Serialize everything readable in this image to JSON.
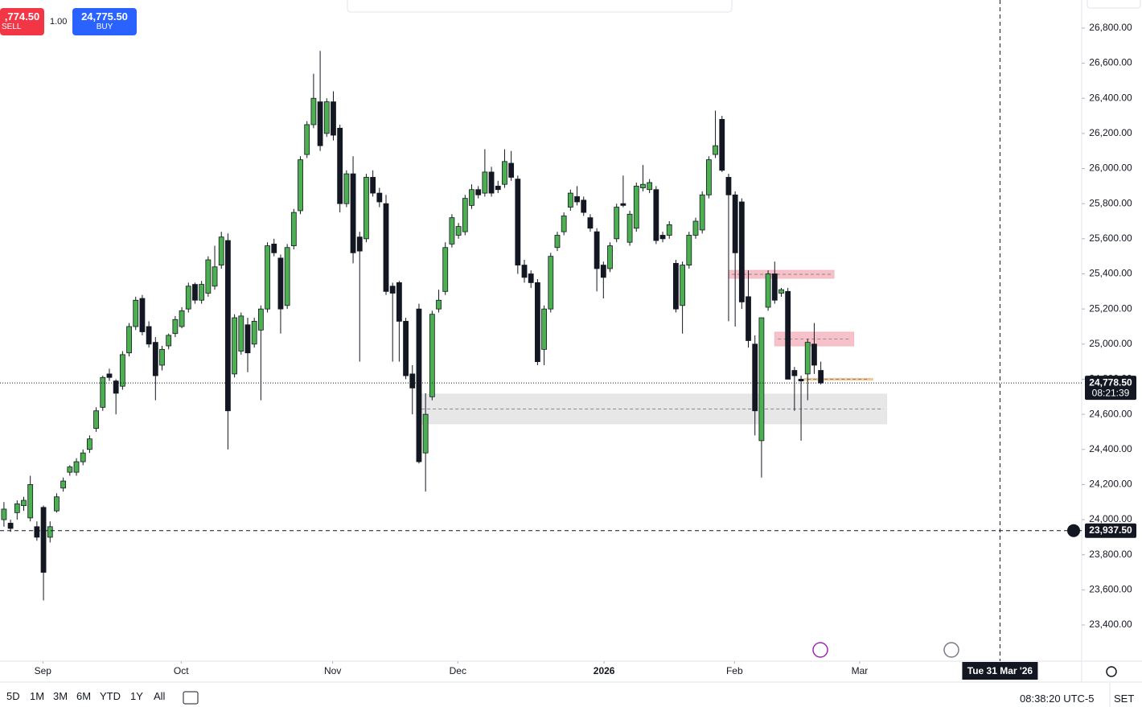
{
  "chart_data": {
    "type": "candlestick",
    "up_color": "#4caf50",
    "down_color": "#131722",
    "candles": [
      [
        24000,
        24100,
        23960,
        24060
      ],
      [
        23980,
        24000,
        23930,
        23950
      ],
      [
        24040,
        24110,
        24000,
        24090
      ],
      [
        24080,
        24130,
        24050,
        24110
      ],
      [
        24010,
        24250,
        23990,
        24200
      ],
      [
        23960,
        23990,
        23880,
        23900
      ],
      [
        24070,
        24080,
        23540,
        23700
      ],
      [
        23900,
        23990,
        23870,
        23960
      ],
      [
        24050,
        24150,
        24040,
        24130
      ],
      [
        24180,
        24240,
        24160,
        24220
      ],
      [
        24270,
        24310,
        24250,
        24300
      ],
      [
        24270,
        24350,
        24250,
        24330
      ],
      [
        24330,
        24400,
        24310,
        24380
      ],
      [
        24400,
        24480,
        24380,
        24460
      ],
      [
        24520,
        24640,
        24500,
        24620
      ],
      [
        24640,
        24820,
        24620,
        24810
      ],
      [
        24830,
        24860,
        24790,
        24810
      ],
      [
        24790,
        24800,
        24600,
        24720
      ],
      [
        24760,
        24960,
        24740,
        24940
      ],
      [
        24950,
        25120,
        24930,
        25100
      ],
      [
        25100,
        25270,
        25080,
        25250
      ],
      [
        25260,
        25280,
        25050,
        25070
      ],
      [
        25100,
        25130,
        24980,
        25000
      ],
      [
        25010,
        25040,
        24680,
        24820
      ],
      [
        24880,
        24990,
        24850,
        24970
      ],
      [
        24990,
        25060,
        24970,
        25050
      ],
      [
        25060,
        25160,
        25040,
        25140
      ],
      [
        25100,
        25210,
        25090,
        25190
      ],
      [
        25200,
        25350,
        25180,
        25330
      ],
      [
        25340,
        25350,
        25230,
        25250
      ],
      [
        25250,
        25360,
        25230,
        25340
      ],
      [
        25290,
        25500,
        25270,
        25480
      ],
      [
        25330,
        25560,
        25310,
        25440
      ],
      [
        25450,
        25640,
        25430,
        25610
      ],
      [
        25590,
        25630,
        24400,
        24620
      ],
      [
        24830,
        25170,
        24810,
        25150
      ],
      [
        24960,
        25180,
        24940,
        25160
      ],
      [
        25110,
        25150,
        24840,
        24950
      ],
      [
        25000,
        25150,
        24980,
        25130
      ],
      [
        25080,
        25220,
        24680,
        25200
      ],
      [
        25200,
        25580,
        25180,
        25560
      ],
      [
        25570,
        25600,
        25500,
        25520
      ],
      [
        25490,
        25510,
        25060,
        25200
      ],
      [
        25220,
        25570,
        25200,
        25550
      ],
      [
        25560,
        25770,
        25540,
        25750
      ],
      [
        25760,
        26070,
        25740,
        26050
      ],
      [
        26080,
        26270,
        26060,
        26250
      ],
      [
        26250,
        26540,
        26230,
        26400
      ],
      [
        26380,
        26670,
        26100,
        26130
      ],
      [
        26200,
        26400,
        26180,
        26380
      ],
      [
        26380,
        26440,
        26160,
        26190
      ],
      [
        26230,
        26250,
        25750,
        25800
      ],
      [
        25800,
        25990,
        25780,
        25970
      ],
      [
        25970,
        26070,
        25460,
        25520
      ],
      [
        25610,
        25640,
        24900,
        25530
      ],
      [
        25600,
        25970,
        25580,
        25950
      ],
      [
        25950,
        25990,
        25840,
        25860
      ],
      [
        25860,
        25890,
        25780,
        25810
      ],
      [
        25800,
        25850,
        25280,
        25300
      ],
      [
        25330,
        25350,
        24900,
        25290
      ],
      [
        25350,
        25360,
        24900,
        25130
      ],
      [
        25130,
        25150,
        24800,
        24820
      ],
      [
        24830,
        24880,
        24600,
        24750
      ],
      [
        25200,
        25230,
        24320,
        24330
      ],
      [
        24380,
        24720,
        24160,
        24600
      ],
      [
        24700,
        25190,
        24680,
        25170
      ],
      [
        25200,
        25310,
        25180,
        25250
      ],
      [
        25300,
        25580,
        25280,
        25550
      ],
      [
        25570,
        25740,
        25550,
        25720
      ],
      [
        25620,
        25690,
        25600,
        25670
      ],
      [
        25640,
        25850,
        25620,
        25830
      ],
      [
        25790,
        25910,
        25770,
        25880
      ],
      [
        25880,
        25900,
        25830,
        25850
      ],
      [
        25860,
        26110,
        25840,
        25980
      ],
      [
        25980,
        26010,
        25840,
        25860
      ],
      [
        25900,
        25930,
        25860,
        25880
      ],
      [
        25910,
        26110,
        25890,
        26040
      ],
      [
        26030,
        26100,
        25930,
        25950
      ],
      [
        25940,
        25960,
        25400,
        25450
      ],
      [
        25450,
        25480,
        25350,
        25380
      ],
      [
        25400,
        25420,
        25320,
        25350
      ],
      [
        25350,
        25370,
        24880,
        24900
      ],
      [
        24970,
        25220,
        24880,
        25200
      ],
      [
        25200,
        25520,
        25180,
        25500
      ],
      [
        25550,
        25640,
        25530,
        25620
      ],
      [
        25640,
        25750,
        25620,
        25730
      ],
      [
        25780,
        25880,
        25760,
        25860
      ],
      [
        25840,
        25900,
        25790,
        25810
      ],
      [
        25820,
        25840,
        25730,
        25750
      ],
      [
        25720,
        25740,
        25640,
        25660
      ],
      [
        25640,
        25660,
        25300,
        25430
      ],
      [
        25450,
        25470,
        25260,
        25380
      ],
      [
        25430,
        25580,
        25410,
        25560
      ],
      [
        25600,
        25800,
        25580,
        25780
      ],
      [
        25800,
        25960,
        25780,
        25790
      ],
      [
        25580,
        25760,
        25560,
        25740
      ],
      [
        25660,
        25920,
        25640,
        25900
      ],
      [
        25890,
        26020,
        25870,
        25910
      ],
      [
        25880,
        25940,
        25860,
        25920
      ],
      [
        25880,
        25900,
        25570,
        25590
      ],
      [
        25620,
        25640,
        25580,
        25600
      ],
      [
        25620,
        25700,
        25600,
        25680
      ],
      [
        25460,
        25480,
        25180,
        25200
      ],
      [
        25220,
        25470,
        25060,
        25450
      ],
      [
        25450,
        25640,
        25430,
        25620
      ],
      [
        25620,
        25720,
        25600,
        25700
      ],
      [
        25650,
        25870,
        25630,
        25850
      ],
      [
        25850,
        26070,
        25830,
        26050
      ],
      [
        26080,
        26330,
        26060,
        26130
      ],
      [
        26280,
        26300,
        25980,
        25990
      ],
      [
        25950,
        25970,
        25130,
        25850
      ],
      [
        25850,
        25870,
        25100,
        25520
      ],
      [
        25810,
        25830,
        25200,
        25240
      ],
      [
        25270,
        25420,
        24980,
        25020
      ],
      [
        25000,
        25050,
        24480,
        24620
      ],
      [
        24450,
        25150,
        24240,
        25150
      ],
      [
        25210,
        25420,
        25190,
        25400
      ],
      [
        25400,
        25470,
        25230,
        25250
      ],
      [
        25290,
        25320,
        25270,
        25310
      ],
      [
        25300,
        25320,
        24800,
        24800
      ],
      [
        24850,
        24870,
        24620,
        24820
      ],
      [
        24800,
        24820,
        24450,
        24790
      ],
      [
        24830,
        25030,
        24680,
        25010
      ],
      [
        25000,
        25120,
        24830,
        24880
      ],
      [
        24850,
        24900,
        24770,
        24778.5
      ]
    ],
    "xlim": [
      -0.6,
      163.6
    ],
    "xticks": [
      {
        "value": 5.9,
        "label": "Sep"
      },
      {
        "value": 26.9,
        "label": "Oct"
      },
      {
        "value": 49.9,
        "label": "Nov"
      },
      {
        "value": 68.9,
        "label": "Dec"
      },
      {
        "value": 91.1,
        "label": "2026"
      },
      {
        "value": 110.9,
        "label": "Feb"
      },
      {
        "value": 129.9,
        "label": "Mar"
      }
    ],
    "ylim": [
      23194,
      26960
    ],
    "yticks": [
      {
        "value": 23400,
        "label": "23,400.00"
      },
      {
        "value": 23600,
        "label": "23,600.00"
      },
      {
        "value": 23800,
        "label": "23,800.00"
      },
      {
        "value": 24000,
        "label": "24,000.00"
      },
      {
        "value": 24200,
        "label": "24,200.00"
      },
      {
        "value": 24400,
        "label": "24,400.00"
      },
      {
        "value": 24600,
        "label": "24,600.00"
      },
      {
        "value": 24800,
        "label": "24,800.00"
      },
      {
        "value": 25000,
        "label": "25,000.00"
      },
      {
        "value": 25200,
        "label": "25,200.00"
      },
      {
        "value": 25400,
        "label": "25,400.00"
      },
      {
        "value": 25600,
        "label": "25,600.00"
      },
      {
        "value": 25800,
        "label": "25,800.00"
      },
      {
        "value": 26000,
        "label": "26,000.00"
      },
      {
        "value": 26200,
        "label": "26,200.00"
      },
      {
        "value": 26400,
        "label": "26,400.00"
      },
      {
        "value": 26600,
        "label": "26,600.00"
      },
      {
        "value": 26800,
        "label": "26,800.00"
      }
    ],
    "zones": [
      {
        "x": [
          110,
          126
        ],
        "y": [
          25420,
          25375
        ],
        "color": "#f4b6be"
      },
      {
        "x": [
          117,
          129
        ],
        "y": [
          25068,
          24990
        ],
        "color": "#f4b6be"
      },
      {
        "x": [
          62.9,
          134
        ],
        "y": [
          24715,
          24546
        ],
        "color": "#e3e3e3"
      },
      {
        "x": [
          121.5,
          131.9
        ],
        "y": [
          24805,
          24795
        ],
        "color": "#f3c58c"
      }
    ],
    "last_price": {
      "value": 24778.5,
      "label": "24,778.50",
      "countdown": "08:21:39"
    },
    "crosshair": {
      "x": 151.2,
      "x_label": "Tue 31 Mar '26",
      "price": {
        "value": 23937.5,
        "label": "23,937.50"
      }
    }
  },
  "trade": {
    "sell_price": ",774.50",
    "sell_label": "SELL",
    "quantity": "1.00",
    "buy_price": "24,775.50",
    "buy_label": "BUY"
  },
  "bottom_bar": {
    "ranges": [
      "5D",
      "1M",
      "3M",
      "6M",
      "YTD",
      "1Y",
      "All"
    ],
    "clock": "08:38:20 UTC-5",
    "scale_button": "SET"
  }
}
